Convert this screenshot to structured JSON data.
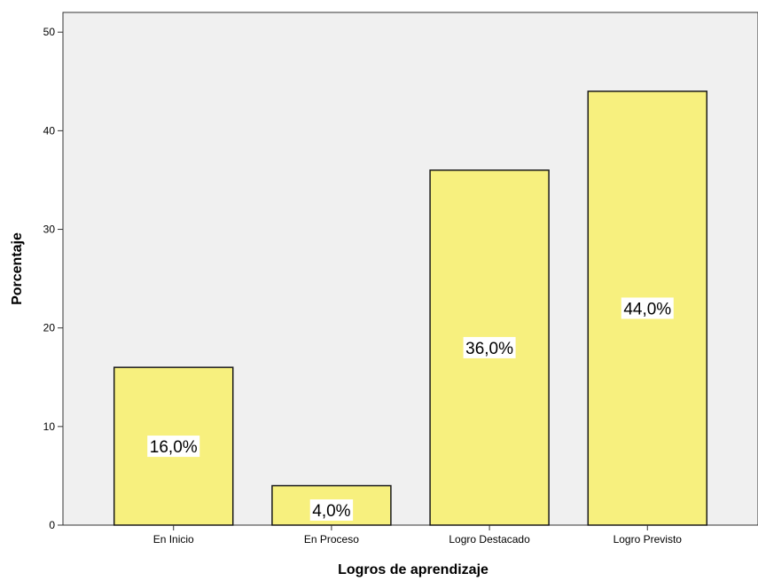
{
  "chart_data": {
    "type": "bar",
    "categories": [
      "En Inicio",
      "En Proceso",
      "Logro Destacado",
      "Logro Previsto"
    ],
    "values": [
      16.0,
      4.0,
      36.0,
      44.0
    ],
    "data_labels": [
      "16,0%",
      "4,0%",
      "36,0%",
      "44,0%"
    ],
    "xlabel": "Logros de aprendizaje",
    "ylabel": "Porcentaje",
    "ylim": [
      0,
      52
    ],
    "yticks": [
      "0",
      "10",
      "20",
      "30",
      "40",
      "50"
    ],
    "grid": false,
    "colors": {
      "plot_background": "#f0f0f0",
      "bar_fill": "#f7f07e",
      "bar_stroke": "#1a1a1a",
      "label_background": "#ffffff"
    }
  }
}
